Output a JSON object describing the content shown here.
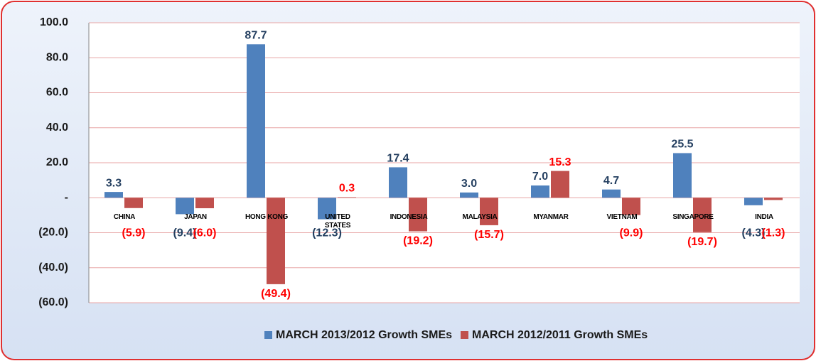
{
  "chart_data": {
    "type": "bar",
    "categories": [
      "CHINA",
      "JAPAN",
      "HONG KONG",
      "UNITED STATES",
      "INDONESIA",
      "MALAYSIA",
      "MYANMAR",
      "VIETNAM",
      "SINGAPORE",
      "INDIA"
    ],
    "series": [
      {
        "name": "MARCH 2013/2012 Growth SMEs",
        "color": "#4f81bd",
        "values": [
          3.3,
          -9.4,
          87.7,
          -12.3,
          17.4,
          3.0,
          7.0,
          4.7,
          25.5,
          -4.3
        ],
        "value_labels": [
          "3.3",
          "(9.4)",
          "87.7",
          "(12.3)",
          "17.4",
          "3.0",
          "7.0",
          "4.7",
          "25.5",
          "(4.3)"
        ],
        "label_color": "#243f60"
      },
      {
        "name": "MARCH 2012/2011 Growth SMEs",
        "color": "#c0504d",
        "values": [
          -5.9,
          -6.0,
          -49.4,
          0.3,
          -19.2,
          -15.7,
          15.3,
          -9.9,
          -19.7,
          -1.3
        ],
        "value_labels": [
          "(5.9)",
          "(6.0)",
          "(49.4)",
          "0.3",
          "(19.2)",
          "(15.7)",
          "15.3",
          "(9.9)",
          "(19.7)",
          "(1.3)"
        ],
        "label_color": "#ff0000"
      }
    ],
    "ylim": [
      -60,
      100
    ],
    "yticks": [
      {
        "value": -60,
        "label": "(60.0)"
      },
      {
        "value": -40,
        "label": "(40.0)"
      },
      {
        "value": -20,
        "label": "(20.0)"
      },
      {
        "value": 0,
        "label": "-"
      },
      {
        "value": 20,
        "label": "20.0"
      },
      {
        "value": 40,
        "label": "40.0"
      },
      {
        "value": 60,
        "label": "60.0"
      },
      {
        "value": 80,
        "label": "80.0"
      },
      {
        "value": 100,
        "label": "100.0"
      }
    ],
    "grid": true,
    "grid_color": "#e8a5a5",
    "legend": "bottom"
  }
}
